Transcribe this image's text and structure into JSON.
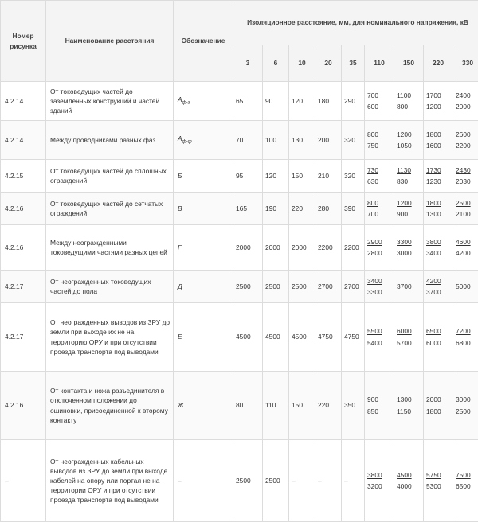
{
  "headers": {
    "figure": "Номер рисунка",
    "name": "Наименование расстояния",
    "symbol": "Обозначение",
    "group": "Изоляционное расстояние, мм, для номинального напряжения, кВ",
    "voltages": [
      "3",
      "6",
      "10",
      "20",
      "35",
      "110",
      "150",
      "220",
      "330"
    ]
  },
  "rows": [
    {
      "fig": "4.2.14",
      "name": "От токоведущих частей до заземленных конструкций и частей зданий",
      "sym": "А",
      "sub": "ф-з",
      "low": [
        "65",
        "90",
        "120",
        "180",
        "290"
      ],
      "high": [
        [
          "700",
          "600"
        ],
        [
          "1100",
          "800"
        ],
        [
          "1700",
          "1200"
        ],
        [
          "2400",
          "2000"
        ]
      ]
    },
    {
      "fig": "4.2.14",
      "name": "Между проводниками разных фаз",
      "sym": "А",
      "sub": "ф-ф",
      "low": [
        "70",
        "100",
        "130",
        "200",
        "320"
      ],
      "high": [
        [
          "800",
          "750"
        ],
        [
          "1200",
          "1050"
        ],
        [
          "1800",
          "1600"
        ],
        [
          "2600",
          "2200"
        ]
      ]
    },
    {
      "fig": "4.2.15",
      "name": "От токоведущих частей до сплошных ограждений",
      "sym": "Б",
      "sub": "",
      "low": [
        "95",
        "120",
        "150",
        "210",
        "320"
      ],
      "high": [
        [
          "730",
          "630"
        ],
        [
          "1130",
          "830"
        ],
        [
          "1730",
          "1230"
        ],
        [
          "2430",
          "2030"
        ]
      ]
    },
    {
      "fig": "4.2.16",
      "name": "От токоведущих частей до сетчатых ограждений",
      "sym": "В",
      "sub": "",
      "low": [
        "165",
        "190",
        "220",
        "280",
        "390"
      ],
      "high": [
        [
          "800",
          "700"
        ],
        [
          "1200",
          "900"
        ],
        [
          "1800",
          "1300"
        ],
        [
          "2500",
          "2100"
        ]
      ]
    },
    {
      "fig": "4.2.16",
      "name": "Между неогражденными токоведущими частями разных цепей",
      "sym": "Г",
      "sub": "",
      "low": [
        "2000",
        "2000",
        "2000",
        "2200",
        "2200"
      ],
      "high": [
        [
          "2900",
          "2800"
        ],
        [
          "3300",
          "3000"
        ],
        [
          "3800",
          "3400"
        ],
        [
          "4600",
          "4200"
        ]
      ]
    },
    {
      "fig": "4.2.17",
      "name": "От неогражденных токоведущих частей до пола",
      "sym": "Д",
      "sub": "",
      "low": [
        "2500",
        "2500",
        "2500",
        "2700",
        "2700"
      ],
      "high": [
        [
          "3400",
          "3300"
        ],
        [
          "",
          "3700"
        ],
        [
          "4200",
          "3700"
        ],
        [
          "",
          "5000"
        ]
      ]
    },
    {
      "fig": "4.2.17",
      "name": "От неогражденных выводов из ЗРУ до земли при выходе их не на территорию ОРУ и при отсутствии проезда транспорта под выводами",
      "sym": "Е",
      "sub": "",
      "low": [
        "4500",
        "4500",
        "4500",
        "4750",
        "4750"
      ],
      "high": [
        [
          "5500",
          "5400"
        ],
        [
          "6000",
          "5700"
        ],
        [
          "6500",
          "6000"
        ],
        [
          "7200",
          "6800"
        ]
      ]
    },
    {
      "fig": "4.2.16",
      "name": "От контакта и ножа разъединителя в отключенном положении до ошиновки, присоединенной к второму контакту",
      "sym": "Ж",
      "sub": "",
      "low": [
        "80",
        "110",
        "150",
        "220",
        "350"
      ],
      "high": [
        [
          "900",
          "850"
        ],
        [
          "1300",
          "1150"
        ],
        [
          "2000",
          "1800"
        ],
        [
          "3000",
          "2500"
        ]
      ]
    },
    {
      "fig": "–",
      "name": "От неогражденных кабельных выводов из ЗРУ до земли при выходе кабелей на опору или портал не на территории ОРУ и при отсутствии проезда транспорта под выводами",
      "sym": "–",
      "sub": "",
      "low": [
        "2500",
        "2500",
        "–",
        "–",
        "–"
      ],
      "high": [
        [
          "3800",
          "3200"
        ],
        [
          "4500",
          "4000"
        ],
        [
          "5750",
          "5300"
        ],
        [
          "7500",
          "6500"
        ]
      ]
    }
  ]
}
